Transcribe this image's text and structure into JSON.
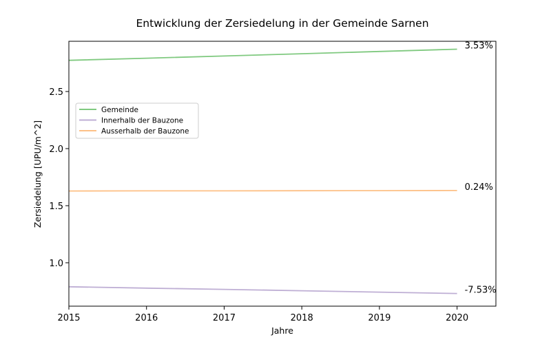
{
  "chart_data": {
    "type": "line",
    "title": "Entwicklung der Zersiedelung in der Gemeinde Sarnen",
    "xlabel": "Jahre",
    "ylabel": "Zersiedelung [UPU/m^2]",
    "x": [
      2015,
      2016,
      2017,
      2018,
      2019,
      2020
    ],
    "xlim": [
      2015,
      2020.5
    ],
    "ylim": [
      0.62,
      2.94
    ],
    "xticks": [
      "2015",
      "2016",
      "2017",
      "2018",
      "2019",
      "2020"
    ],
    "yticks": [
      {
        "value": 1.0,
        "label": "1.0"
      },
      {
        "value": 1.5,
        "label": "1.5"
      },
      {
        "value": 2.0,
        "label": "2.0"
      },
      {
        "value": 2.5,
        "label": "2.5"
      }
    ],
    "grid": false,
    "legend_position": "center-left",
    "series": [
      {
        "name": "Gemeinde",
        "color": "#7fc97f",
        "values": [
          2.773,
          2.792,
          2.811,
          2.831,
          2.851,
          2.871
        ],
        "end_label": "3.53%"
      },
      {
        "name": "Innerhalb der Bauzone",
        "color": "#beaed4",
        "values": [
          0.79,
          0.778,
          0.767,
          0.755,
          0.743,
          0.731
        ],
        "end_label": "-7.53%"
      },
      {
        "name": "Ausserhalb der Bauzone",
        "color": "#fdc086",
        "values": [
          1.629,
          1.63,
          1.63,
          1.631,
          1.632,
          1.633
        ],
        "end_label": "0.24%"
      }
    ]
  }
}
